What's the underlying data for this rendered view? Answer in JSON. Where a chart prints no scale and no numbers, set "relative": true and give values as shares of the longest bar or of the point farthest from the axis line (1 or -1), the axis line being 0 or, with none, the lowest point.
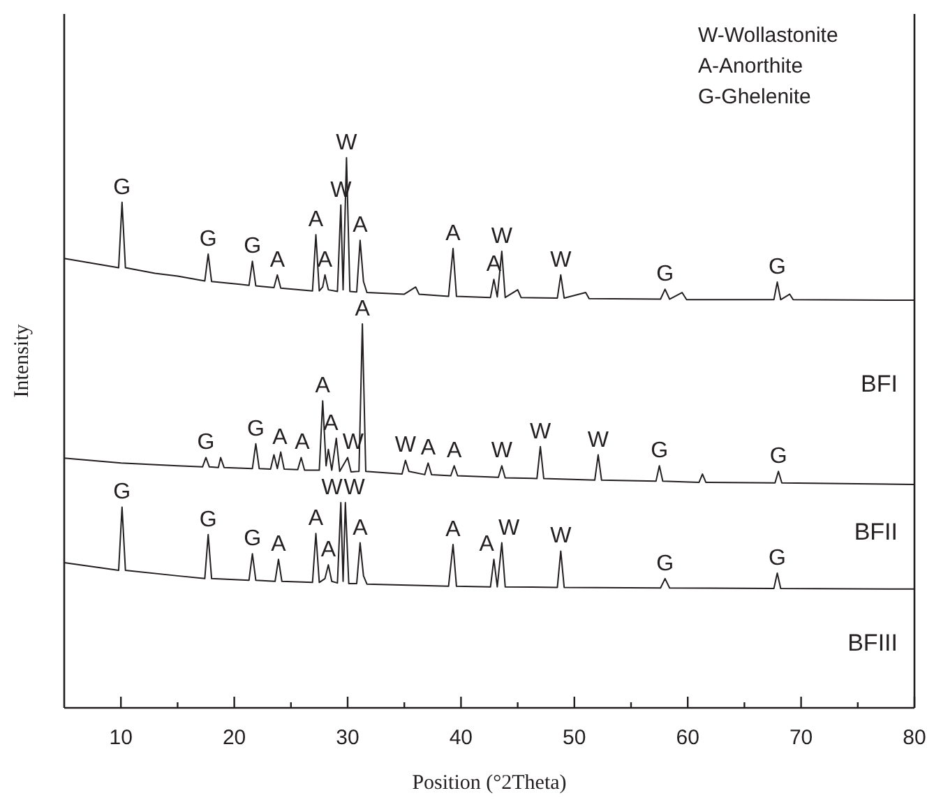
{
  "chart_data": {
    "type": "line",
    "relative": true,
    "xlabel": "Position (°2Theta)",
    "ylabel": "Intensity",
    "xlim": [
      5,
      80
    ],
    "xticks": [
      10,
      {
        "value": 15,
        "label": null
      },
      20,
      {
        "value": 25,
        "label": null
      },
      30,
      {
        "value": 35,
        "label": null
      },
      40,
      {
        "value": 45,
        "label": null
      },
      50,
      {
        "value": 55,
        "label": null
      },
      60,
      {
        "value": 65,
        "label": null
      },
      70,
      {
        "value": 75,
        "label": null
      },
      80
    ],
    "series": [
      {
        "name": "BFI",
        "color": "#231f20",
        "x": [
          5,
          7,
          9.8,
          10.1,
          10.4,
          13,
          15,
          17.4,
          17.7,
          18,
          20.5,
          21.3,
          21.6,
          21.9,
          23.5,
          23.8,
          24.1,
          26.9,
          27.2,
          27.5,
          27.8,
          28.0,
          28.3,
          29.1,
          29.4,
          29.6,
          29.9,
          30.2,
          30.8,
          31.1,
          31.4,
          31.7,
          35,
          36,
          36.3,
          38.9,
          39.3,
          39.6,
          42.6,
          42.9,
          43.2,
          43.6,
          43.9,
          45,
          45.3,
          48.5,
          48.8,
          49.1,
          51,
          51.3,
          57.6,
          58,
          58.4,
          59.5,
          59.9,
          67.6,
          67.9,
          68.2,
          69,
          69.3,
          80
        ],
        "values": [
          0.817,
          0.81,
          0.8,
          0.919,
          0.8,
          0.79,
          0.785,
          0.776,
          0.825,
          0.775,
          0.77,
          0.768,
          0.812,
          0.767,
          0.764,
          0.787,
          0.763,
          0.758,
          0.86,
          0.758,
          0.765,
          0.787,
          0.76,
          0.757,
          0.914,
          0.76,
          1,
          0.757,
          0.756,
          0.85,
          0.775,
          0.755,
          0.752,
          0.765,
          0.752,
          0.748,
          0.835,
          0.748,
          0.746,
          0.779,
          0.747,
          0.83,
          0.746,
          0.76,
          0.746,
          0.745,
          0.787,
          0.745,
          0.755,
          0.744,
          0.743,
          0.761,
          0.743,
          0.755,
          0.742,
          0.742,
          0.774,
          0.742,
          0.752,
          0.742,
          0.741
        ]
      },
      {
        "name": "BFII",
        "color": "#231f20",
        "x": [
          5,
          10,
          15,
          17.2,
          17.5,
          17.8,
          18.6,
          18.8,
          19.1,
          21.6,
          21.9,
          22.2,
          23.2,
          23.5,
          23.8,
          24.1,
          24.4,
          25.6,
          25.9,
          26.2,
          27.5,
          27.8,
          28.1,
          28.3,
          28.6,
          29.0,
          29.3,
          30,
          30.3,
          31.0,
          31.3,
          31.6,
          34.8,
          35.1,
          35.4,
          36.8,
          37.1,
          37.4,
          39.1,
          39.4,
          39.7,
          43.3,
          43.6,
          43.9,
          46.7,
          47.0,
          47.3,
          51.8,
          52.1,
          52.4,
          57.2,
          57.5,
          57.8,
          61,
          61.3,
          61.6,
          67.7,
          68.0,
          68.3,
          80
        ],
        "values": [
          0.454,
          0.445,
          0.44,
          0.438,
          0.455,
          0.438,
          0.437,
          0.455,
          0.437,
          0.435,
          0.48,
          0.435,
          0.434,
          0.46,
          0.435,
          0.465,
          0.434,
          0.433,
          0.455,
          0.432,
          0.432,
          0.558,
          0.44,
          0.47,
          0.432,
          0.49,
          0.43,
          0.455,
          0.429,
          0.43,
          0.698,
          0.43,
          0.425,
          0.45,
          0.43,
          0.424,
          0.445,
          0.424,
          0.422,
          0.44,
          0.422,
          0.419,
          0.44,
          0.418,
          0.417,
          0.475,
          0.417,
          0.414,
          0.46,
          0.414,
          0.412,
          0.44,
          0.412,
          0.41,
          0.425,
          0.41,
          0.409,
          0.43,
          0.409,
          0.406
        ]
      },
      {
        "name": "BFIII",
        "color": "#231f20",
        "x": [
          5,
          9.8,
          10.1,
          10.4,
          15,
          17.4,
          17.7,
          18,
          21.3,
          21.6,
          21.9,
          23.6,
          23.9,
          24.2,
          26.9,
          27.2,
          27.5,
          28.0,
          28.3,
          28.6,
          29.1,
          29.4,
          29.6,
          29.8,
          30.1,
          30.8,
          31.1,
          31.4,
          31.7,
          38.9,
          39.3,
          39.6,
          42.6,
          42.9,
          43.2,
          43.6,
          43.9,
          48.5,
          48.8,
          49.1,
          57.6,
          58,
          58.4,
          67.6,
          67.9,
          68.2,
          80
        ],
        "values": [
          0.264,
          0.25,
          0.365,
          0.25,
          0.24,
          0.235,
          0.315,
          0.235,
          0.232,
          0.28,
          0.232,
          0.23,
          0.27,
          0.23,
          0.228,
          0.317,
          0.228,
          0.235,
          0.26,
          0.23,
          0.227,
          0.373,
          0.23,
          0.373,
          0.226,
          0.226,
          0.3,
          0.24,
          0.225,
          0.221,
          0.297,
          0.221,
          0.22,
          0.27,
          0.22,
          0.3,
          0.22,
          0.219,
          0.285,
          0.219,
          0.218,
          0.235,
          0.218,
          0.217,
          0.245,
          0.217,
          0.216
        ]
      }
    ],
    "annotations": [
      "W-Wollastonite",
      "A-Anorthite",
      "G-Ghelenite",
      {
        "text": "G",
        "x": 10.1,
        "y": 0.919
      },
      {
        "text": "G",
        "x": 17.7,
        "y": 0.825
      },
      {
        "text": "G",
        "x": 21.6,
        "y": 0.812
      },
      {
        "text": "A",
        "x": 23.8,
        "y": 0.787
      },
      {
        "text": "A",
        "x": 27.2,
        "y": 0.86
      },
      {
        "text": "A",
        "x": 28.0,
        "y": 0.787
      },
      {
        "text": "W",
        "x": 29.4,
        "y": 0.914
      },
      {
        "text": "W",
        "x": 29.9,
        "y": 1
      },
      {
        "text": "A",
        "x": 31.1,
        "y": 0.85
      },
      {
        "text": "A",
        "x": 39.3,
        "y": 0.835
      },
      {
        "text": "A",
        "x": 42.9,
        "y": 0.779
      },
      {
        "text": "W",
        "x": 43.6,
        "y": 0.83
      },
      {
        "text": "W",
        "x": 48.8,
        "y": 0.787
      },
      {
        "text": "G",
        "x": 58,
        "y": 0.761
      },
      {
        "text": "G",
        "x": 67.9,
        "y": 0.774
      },
      {
        "text": "G",
        "x": 17.5,
        "y": 0.455
      },
      {
        "text": "G",
        "x": 21.9,
        "y": 0.48
      },
      {
        "text": "A",
        "x": 24.1,
        "y": 0.465
      },
      {
        "text": "A",
        "x": 25.9,
        "y": 0.455
      },
      {
        "text": "A",
        "x": 27.8,
        "y": 0.558
      },
      {
        "text": "A",
        "x": 29.0,
        "y": 0.49
      },
      {
        "text": "W",
        "x": 30,
        "y": 0.455
      },
      {
        "text": "A",
        "x": 31.3,
        "y": 0.698
      },
      {
        "text": "W",
        "x": 35.1,
        "y": 0.45
      },
      {
        "text": "A",
        "x": 37.1,
        "y": 0.445
      },
      {
        "text": "A",
        "x": 39.4,
        "y": 0.44
      },
      {
        "text": "W",
        "x": 43.6,
        "y": 0.44
      },
      {
        "text": "W",
        "x": 47.0,
        "y": 0.475
      },
      {
        "text": "W",
        "x": 52.1,
        "y": 0.46
      },
      {
        "text": "G",
        "x": 57.5,
        "y": 0.44
      },
      {
        "text": "G",
        "x": 68.0,
        "y": 0.43
      },
      {
        "text": "G",
        "x": 10.1,
        "y": 0.365
      },
      {
        "text": "G",
        "x": 17.7,
        "y": 0.315
      },
      {
        "text": "G",
        "x": 21.6,
        "y": 0.28
      },
      {
        "text": "A",
        "x": 23.9,
        "y": 0.27
      },
      {
        "text": "A",
        "x": 27.2,
        "y": 0.317
      },
      {
        "text": "A",
        "x": 28.3,
        "y": 0.26
      },
      {
        "text": "W",
        "x": 29.4,
        "y": 0.373
      },
      {
        "text": "W",
        "x": 29.8,
        "y": 0.373
      },
      {
        "text": "A",
        "x": 31.1,
        "y": 0.3
      },
      {
        "text": "A",
        "x": 39.3,
        "y": 0.297
      },
      {
        "text": "A",
        "x": 42.9,
        "y": 0.27
      },
      {
        "text": "W",
        "x": 43.6,
        "y": 0.3
      },
      {
        "text": "W",
        "x": 48.8,
        "y": 0.285
      },
      {
        "text": "G",
        "x": 58,
        "y": 0.235
      },
      {
        "text": "G",
        "x": 67.9,
        "y": 0.245
      }
    ]
  }
}
